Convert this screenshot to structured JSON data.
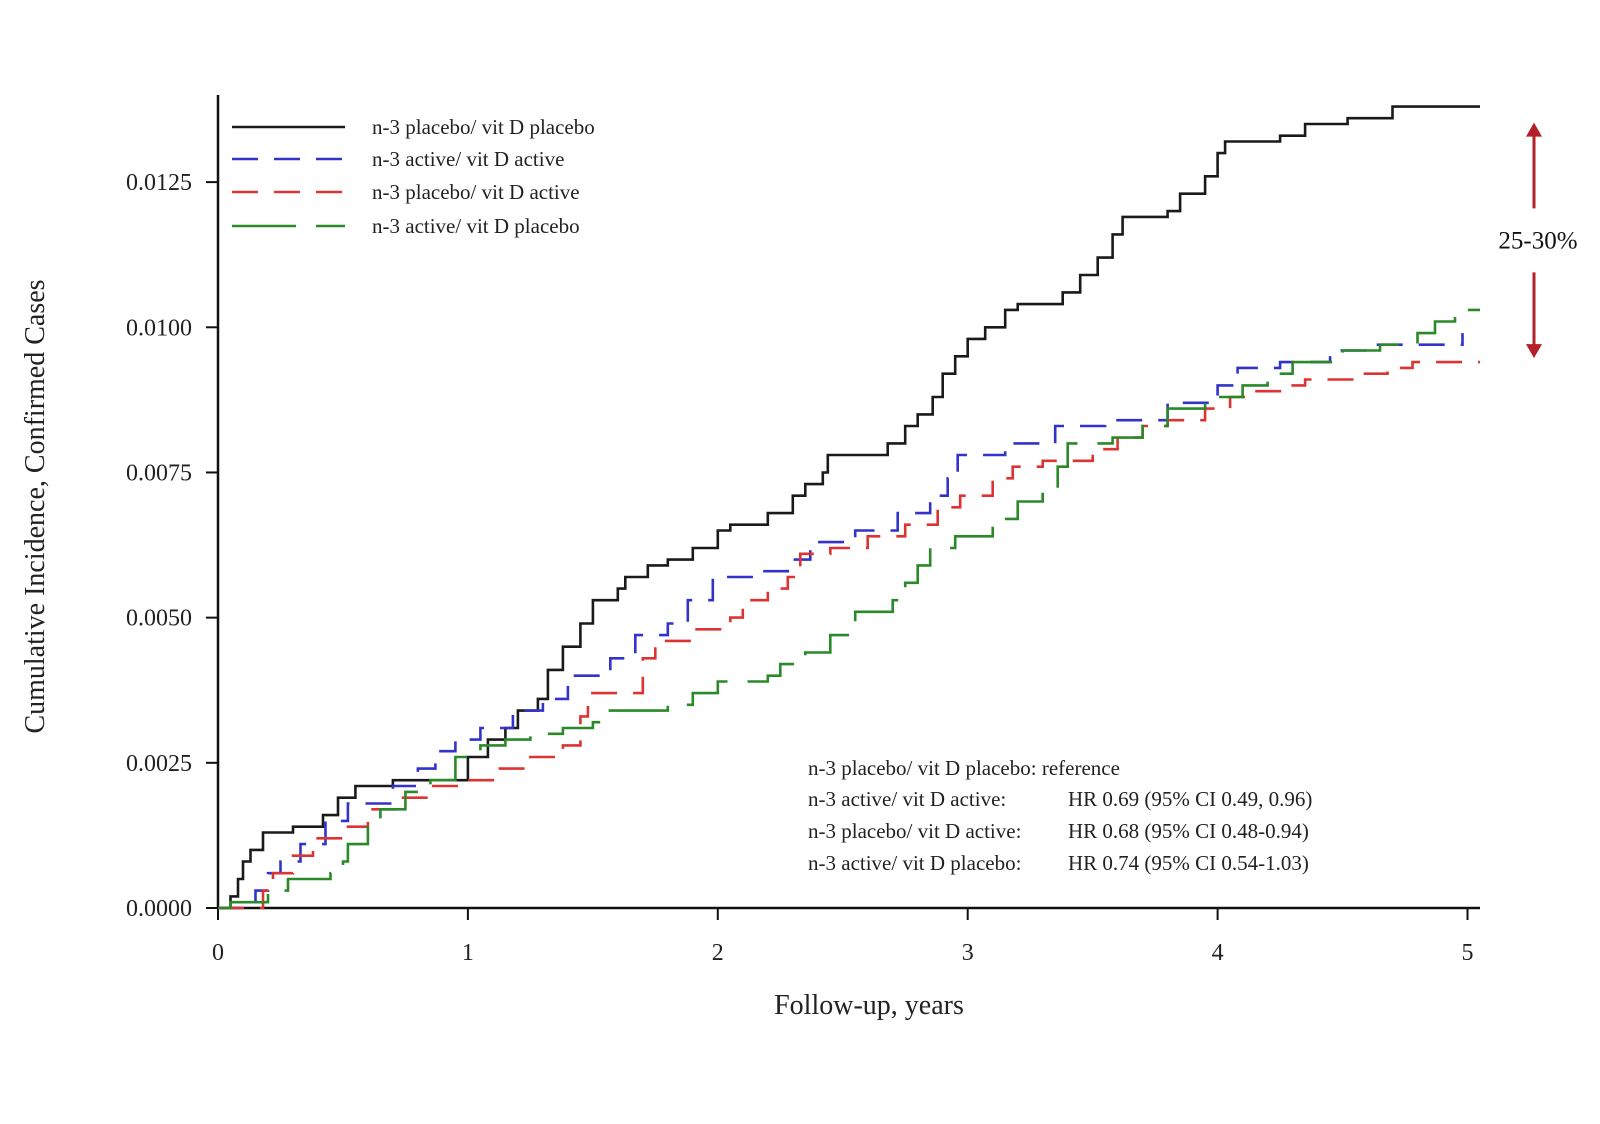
{
  "chart_data": {
    "type": "line",
    "step": true,
    "xlabel": "Follow-up, years",
    "ylabel": "Cumulative Incidence, Confirmed Cases",
    "xlim": [
      0,
      5.05
    ],
    "ylim": [
      0,
      0.014
    ],
    "x_ticks": [
      0,
      1,
      2,
      3,
      4,
      5
    ],
    "x_tick_labels": [
      "0",
      "1",
      "2",
      "3",
      "4",
      "5"
    ],
    "y_ticks": [
      0,
      0.0025,
      0.005,
      0.0075,
      0.01,
      0.0125
    ],
    "y_tick_labels": [
      "0.0000",
      "0.0025",
      "0.0050",
      "0.0075",
      "0.0100",
      "0.0125"
    ],
    "grid": false,
    "legend_position": "top-left",
    "series": [
      {
        "name": "n-3 placebo/ vit D placebo",
        "color": "#1a1a1a",
        "dash": "solid",
        "points": [
          [
            0,
            0
          ],
          [
            0.05,
            0.0002
          ],
          [
            0.08,
            0.0005
          ],
          [
            0.1,
            0.0008
          ],
          [
            0.13,
            0.001
          ],
          [
            0.18,
            0.0013
          ],
          [
            0.3,
            0.0014
          ],
          [
            0.42,
            0.0016
          ],
          [
            0.48,
            0.0019
          ],
          [
            0.55,
            0.0021
          ],
          [
            0.7,
            0.0022
          ],
          [
            0.95,
            0.0022
          ],
          [
            1.0,
            0.0026
          ],
          [
            1.08,
            0.0029
          ],
          [
            1.15,
            0.0031
          ],
          [
            1.2,
            0.0034
          ],
          [
            1.28,
            0.0036
          ],
          [
            1.32,
            0.0041
          ],
          [
            1.38,
            0.0045
          ],
          [
            1.45,
            0.0049
          ],
          [
            1.5,
            0.0053
          ],
          [
            1.6,
            0.0055
          ],
          [
            1.63,
            0.0057
          ],
          [
            1.72,
            0.0059
          ],
          [
            1.8,
            0.006
          ],
          [
            1.9,
            0.0062
          ],
          [
            2.0,
            0.0065
          ],
          [
            2.05,
            0.0066
          ],
          [
            2.2,
            0.0068
          ],
          [
            2.3,
            0.0071
          ],
          [
            2.35,
            0.0073
          ],
          [
            2.42,
            0.0075
          ],
          [
            2.44,
            0.0078
          ],
          [
            2.62,
            0.0078
          ],
          [
            2.68,
            0.008
          ],
          [
            2.75,
            0.0083
          ],
          [
            2.8,
            0.0085
          ],
          [
            2.86,
            0.0088
          ],
          [
            2.9,
            0.0092
          ],
          [
            2.95,
            0.0095
          ],
          [
            3.0,
            0.0098
          ],
          [
            3.07,
            0.01
          ],
          [
            3.15,
            0.0103
          ],
          [
            3.2,
            0.0104
          ],
          [
            3.38,
            0.0106
          ],
          [
            3.45,
            0.0109
          ],
          [
            3.52,
            0.0112
          ],
          [
            3.58,
            0.0116
          ],
          [
            3.62,
            0.0119
          ],
          [
            3.8,
            0.012
          ],
          [
            3.85,
            0.0123
          ],
          [
            3.95,
            0.0126
          ],
          [
            4.0,
            0.013
          ],
          [
            4.03,
            0.0132
          ],
          [
            4.25,
            0.0133
          ],
          [
            4.35,
            0.0135
          ],
          [
            4.52,
            0.0136
          ],
          [
            4.7,
            0.0138
          ],
          [
            5.05,
            0.0138
          ]
        ]
      },
      {
        "name": "n-3 active/ vit D active",
        "color": "#3333cc",
        "dash": "dashed",
        "points": [
          [
            0,
            0
          ],
          [
            0.15,
            0.0003
          ],
          [
            0.2,
            0.0006
          ],
          [
            0.25,
            0.0008
          ],
          [
            0.33,
            0.0011
          ],
          [
            0.43,
            0.0015
          ],
          [
            0.52,
            0.0018
          ],
          [
            0.7,
            0.0021
          ],
          [
            0.8,
            0.0024
          ],
          [
            0.87,
            0.0027
          ],
          [
            0.95,
            0.0029
          ],
          [
            1.05,
            0.0031
          ],
          [
            1.18,
            0.0034
          ],
          [
            1.3,
            0.0036
          ],
          [
            1.4,
            0.004
          ],
          [
            1.57,
            0.0043
          ],
          [
            1.67,
            0.0047
          ],
          [
            1.8,
            0.0049
          ],
          [
            1.88,
            0.0053
          ],
          [
            1.98,
            0.0057
          ],
          [
            2.15,
            0.0058
          ],
          [
            2.28,
            0.006
          ],
          [
            2.37,
            0.0063
          ],
          [
            2.55,
            0.0065
          ],
          [
            2.72,
            0.0068
          ],
          [
            2.85,
            0.0071
          ],
          [
            2.92,
            0.0074
          ],
          [
            2.96,
            0.0078
          ],
          [
            3.15,
            0.008
          ],
          [
            3.35,
            0.0083
          ],
          [
            3.55,
            0.0084
          ],
          [
            3.8,
            0.0087
          ],
          [
            4.0,
            0.009
          ],
          [
            4.08,
            0.0093
          ],
          [
            4.25,
            0.0094
          ],
          [
            4.45,
            0.0096
          ],
          [
            4.6,
            0.0097
          ],
          [
            4.98,
            0.0099
          ]
        ]
      },
      {
        "name": "n-3 placebo/ vit D active",
        "color": "#dd3333",
        "dash": "dashed",
        "points": [
          [
            0,
            0
          ],
          [
            0.18,
            0.0003
          ],
          [
            0.22,
            0.0006
          ],
          [
            0.3,
            0.0009
          ],
          [
            0.38,
            0.0012
          ],
          [
            0.5,
            0.0014
          ],
          [
            0.6,
            0.0017
          ],
          [
            0.72,
            0.0019
          ],
          [
            0.85,
            0.0021
          ],
          [
            0.98,
            0.0022
          ],
          [
            1.1,
            0.0024
          ],
          [
            1.25,
            0.0026
          ],
          [
            1.38,
            0.0028
          ],
          [
            1.45,
            0.0033
          ],
          [
            1.48,
            0.0037
          ],
          [
            1.7,
            0.0043
          ],
          [
            1.75,
            0.0046
          ],
          [
            1.9,
            0.0048
          ],
          [
            2.05,
            0.005
          ],
          [
            2.1,
            0.0053
          ],
          [
            2.2,
            0.0055
          ],
          [
            2.28,
            0.0057
          ],
          [
            2.33,
            0.0061
          ],
          [
            2.45,
            0.0062
          ],
          [
            2.6,
            0.0064
          ],
          [
            2.75,
            0.0066
          ],
          [
            2.88,
            0.0069
          ],
          [
            2.97,
            0.0071
          ],
          [
            3.1,
            0.0074
          ],
          [
            3.18,
            0.0076
          ],
          [
            3.3,
            0.0077
          ],
          [
            3.5,
            0.0079
          ],
          [
            3.6,
            0.0081
          ],
          [
            3.7,
            0.0083
          ],
          [
            3.8,
            0.0084
          ],
          [
            3.95,
            0.0086
          ],
          [
            4.05,
            0.0088
          ],
          [
            4.15,
            0.0089
          ],
          [
            4.28,
            0.009
          ],
          [
            4.35,
            0.0091
          ],
          [
            4.55,
            0.0092
          ],
          [
            4.68,
            0.0093
          ],
          [
            4.78,
            0.0094
          ],
          [
            5.05,
            0.0094
          ]
        ]
      },
      {
        "name": "n-3 active/ vit D placebo",
        "color": "#2a8a2a",
        "dash": "long-dash",
        "points": [
          [
            0,
            0
          ],
          [
            0.05,
            0.0001
          ],
          [
            0.2,
            0.0003
          ],
          [
            0.28,
            0.0005
          ],
          [
            0.45,
            0.0006
          ],
          [
            0.5,
            0.0008
          ],
          [
            0.52,
            0.0011
          ],
          [
            0.6,
            0.0014
          ],
          [
            0.65,
            0.0017
          ],
          [
            0.75,
            0.002
          ],
          [
            0.85,
            0.0022
          ],
          [
            0.95,
            0.0026
          ],
          [
            1.05,
            0.0028
          ],
          [
            1.15,
            0.0029
          ],
          [
            1.25,
            0.003
          ],
          [
            1.38,
            0.0031
          ],
          [
            1.5,
            0.0032
          ],
          [
            1.55,
            0.0034
          ],
          [
            1.8,
            0.0035
          ],
          [
            1.9,
            0.0037
          ],
          [
            2.0,
            0.0039
          ],
          [
            2.2,
            0.004
          ],
          [
            2.25,
            0.0042
          ],
          [
            2.35,
            0.0044
          ],
          [
            2.45,
            0.0047
          ],
          [
            2.55,
            0.0051
          ],
          [
            2.7,
            0.0053
          ],
          [
            2.75,
            0.0056
          ],
          [
            2.8,
            0.0059
          ],
          [
            2.85,
            0.0062
          ],
          [
            2.95,
            0.0064
          ],
          [
            3.1,
            0.0067
          ],
          [
            3.2,
            0.007
          ],
          [
            3.3,
            0.0072
          ],
          [
            3.36,
            0.0076
          ],
          [
            3.4,
            0.008
          ],
          [
            3.58,
            0.0081
          ],
          [
            3.7,
            0.0083
          ],
          [
            3.8,
            0.0086
          ],
          [
            3.95,
            0.0088
          ],
          [
            4.1,
            0.009
          ],
          [
            4.2,
            0.0092
          ],
          [
            4.3,
            0.0094
          ],
          [
            4.5,
            0.0096
          ],
          [
            4.65,
            0.0097
          ],
          [
            4.8,
            0.0099
          ],
          [
            4.87,
            0.0101
          ],
          [
            4.95,
            0.0103
          ],
          [
            5.05,
            0.0103
          ]
        ]
      }
    ],
    "stats_annotation": [
      {
        "label": "n-3 placebo/ vit D placebo: reference",
        "value": ""
      },
      {
        "label": "n-3 active/ vit D active:",
        "value": "HR 0.69 (95% CI 0.49, 0.96)"
      },
      {
        "label": "n-3 placebo/ vit D active:",
        "value": "HR 0.68 (95% CI 0.48-0.94)"
      },
      {
        "label": "n-3 active/ vit D placebo:",
        "value": "HR 0.74 (95% CI 0.54-1.03)"
      }
    ],
    "difference_annotation": {
      "text": "25-30%",
      "color": "#b3202a",
      "from_y": 0.0138,
      "to_y": 0.0094
    }
  }
}
